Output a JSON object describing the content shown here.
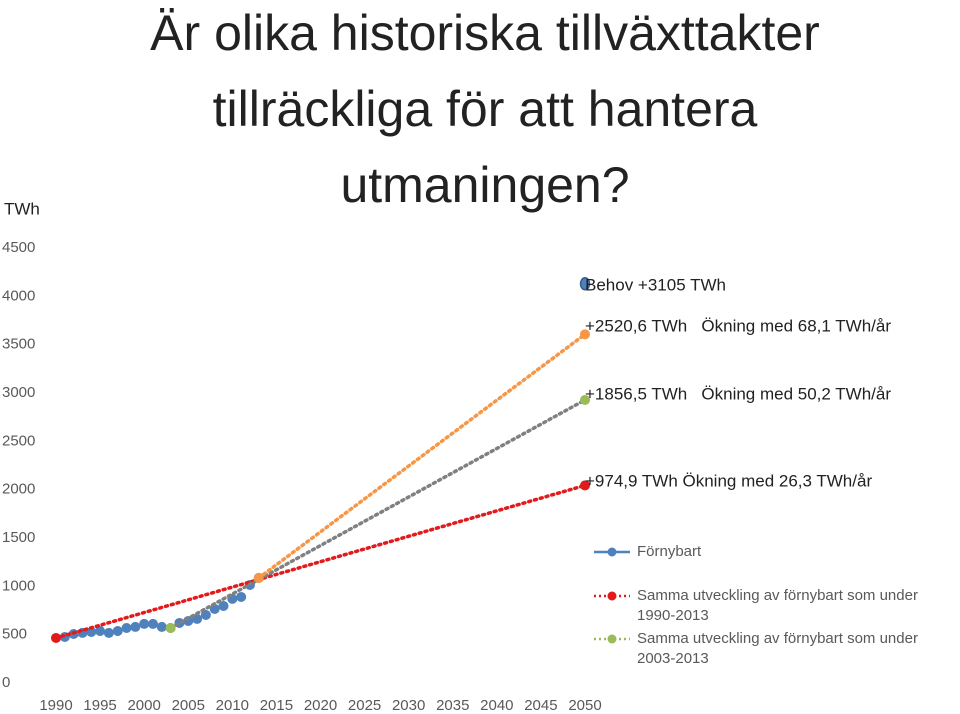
{
  "chart_data": {
    "type": "scatter",
    "title": [
      "Är olika historiska tillväxttakter",
      "tillräckliga för att hantera",
      "utmaningen?"
    ],
    "y_label": "TWh",
    "xlim": [
      1990,
      2050
    ],
    "xticks": [
      1990,
      1995,
      2000,
      2005,
      2010,
      2015,
      2020,
      2025,
      2030,
      2035,
      2040,
      2045,
      2050
    ],
    "ylim": [
      0,
      4500
    ],
    "yticks": [
      0,
      500,
      1000,
      1500,
      2000,
      2500,
      3000,
      3500,
      4000,
      4500
    ],
    "grid": false,
    "series": [
      {
        "name": "Förnybart",
        "color": "#4f81bd",
        "style": "markers",
        "x": [
          1991,
          1992,
          1993,
          1994,
          1995,
          1996,
          1997,
          1998,
          1999,
          2000,
          2001,
          2002,
          2003,
          2004,
          2005,
          2006,
          2007,
          2008,
          2009,
          2010,
          2011,
          2012,
          2013
        ],
        "values": [
          476,
          507,
          518,
          528,
          538,
          518,
          538,
          569,
          580,
          611,
          611,
          580,
          569,
          621,
          642,
          663,
          704,
          766,
          797,
          870,
          890,
          1014,
          1087
        ]
      },
      {
        "name": "Samma utveckling av förnybart som under 1990-2013",
        "color": "#e31a1c",
        "line_color": "#e31a1c",
        "style": "dotted",
        "x": [
          1990,
          2050
        ],
        "values": [
          466,
          2044
        ]
      },
      {
        "name": "Samma utveckling av förnybart som under 2003-2013",
        "color": "#9bbb59",
        "line_color": "#808080",
        "style": "dotted",
        "x": [
          2003,
          2050
        ],
        "values": [
          569,
          2928
        ]
      },
      {
        "color": "#f79646",
        "line_color": "#f79646",
        "style": "dotted",
        "x": [
          2013,
          2050
        ],
        "values": [
          1087,
          3607
        ]
      },
      {
        "color": "#4f81bd",
        "style": "big-marker",
        "x": [
          2050
        ],
        "values": [
          4130
        ]
      }
    ],
    "annotations": [
      "Behov +3105 TWh",
      "+2520,6 TWh   Ökning med 68,1 TWh/år",
      "+1856,5 TWh   Ökning med 50,2 TWh/år",
      "+974,9 TWh Ökning med 26,3 TWh/år"
    ]
  }
}
